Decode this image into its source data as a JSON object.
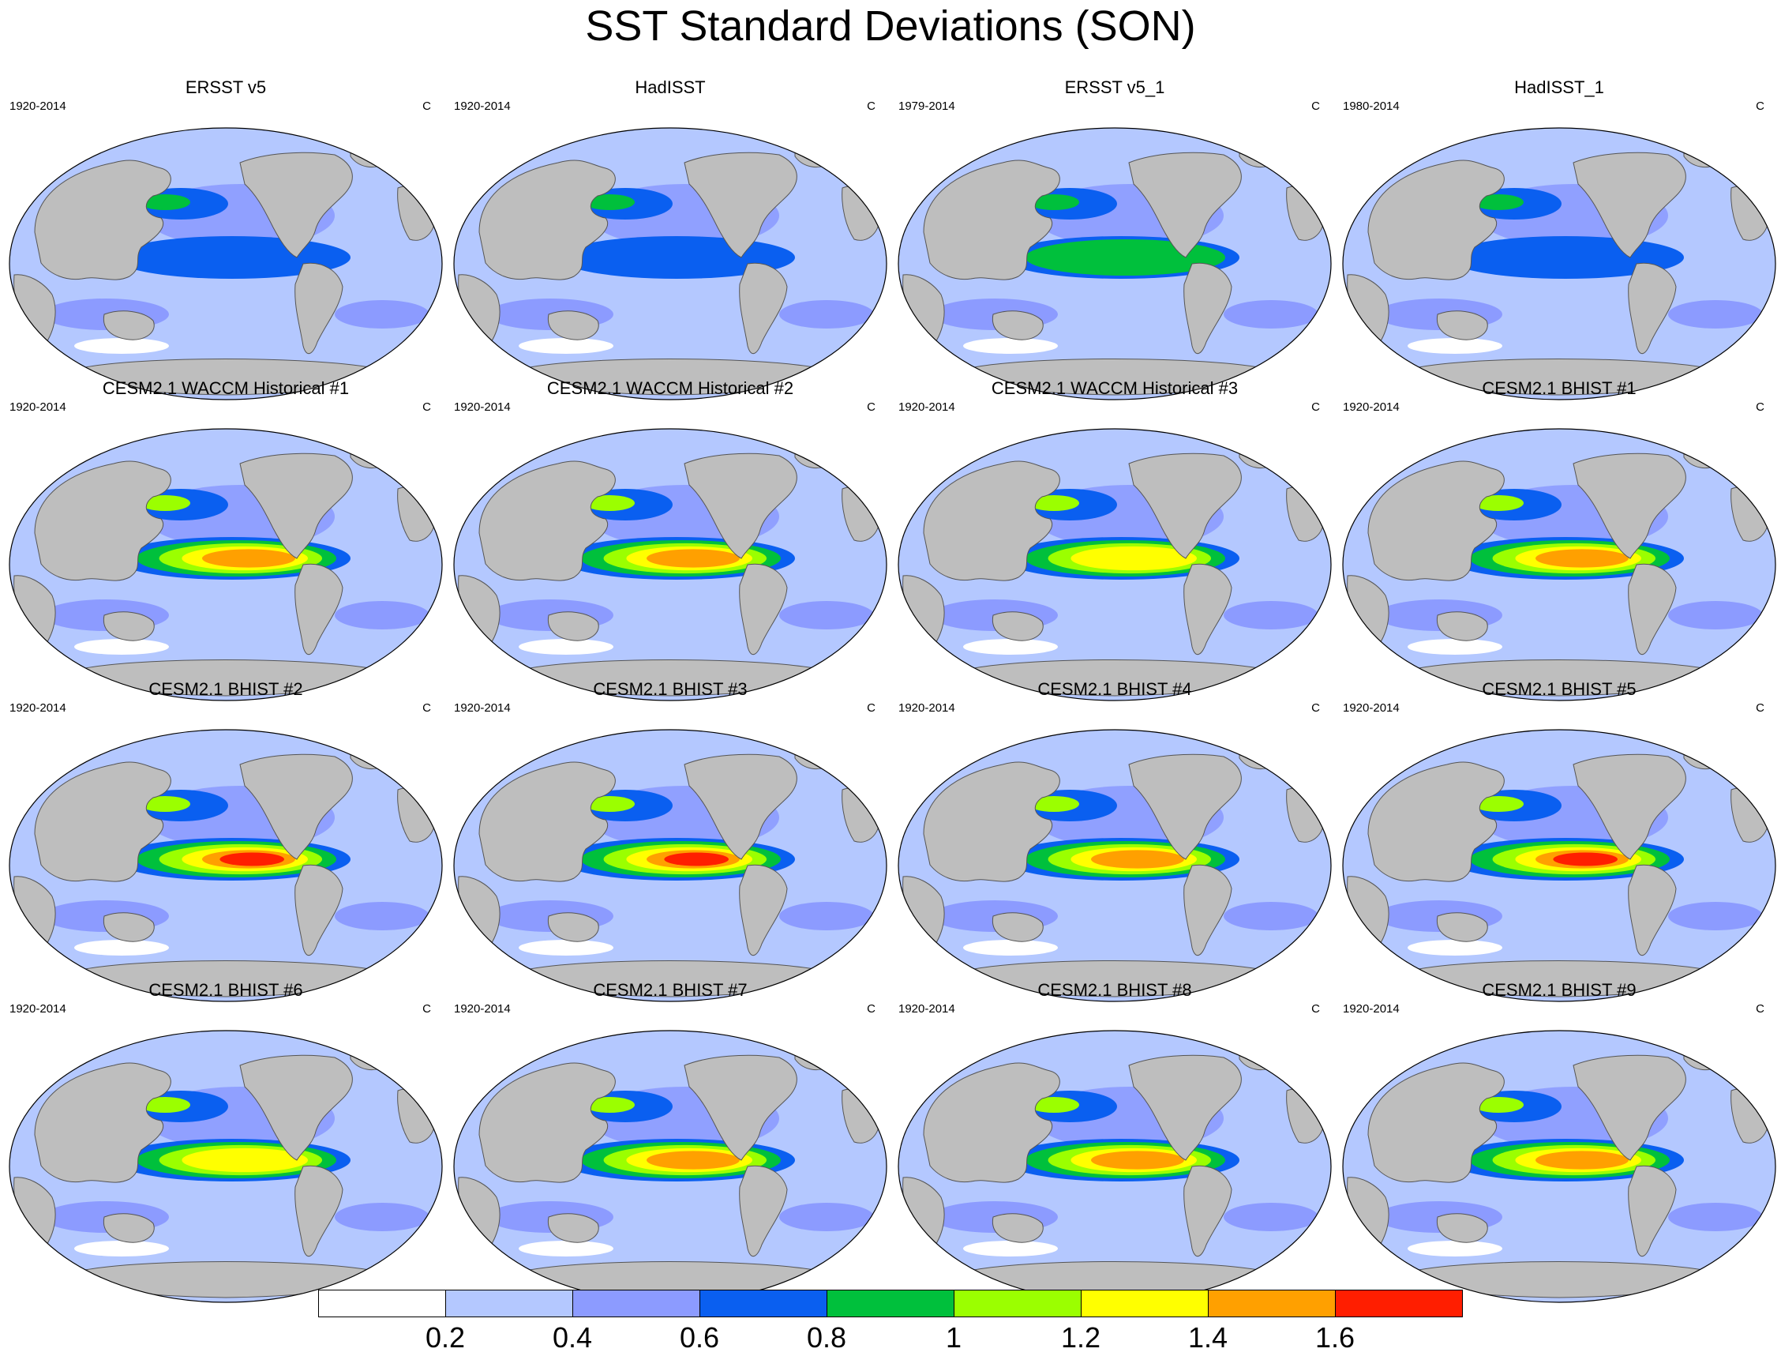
{
  "title": "SST Standard Deviations (SON)",
  "panels": [
    {
      "title": "ERSST v5",
      "period": "1920-2014",
      "unit": "C",
      "enso": 0.8
    },
    {
      "title": "HadISST",
      "period": "1920-2014",
      "unit": "C",
      "enso": 0.75
    },
    {
      "title": "ERSST v5_1",
      "period": "1979-2014",
      "unit": "C",
      "enso": 0.9
    },
    {
      "title": "HadISST_1",
      "period": "1980-2014",
      "unit": "C",
      "enso": 0.85
    },
    {
      "title": "CESM2.1 WACCM Historical #1",
      "period": "1920-2014",
      "unit": "C",
      "enso": 1.5
    },
    {
      "title": "CESM2.1 WACCM Historical #2",
      "period": "1920-2014",
      "unit": "C",
      "enso": 1.55
    },
    {
      "title": "CESM2.1 WACCM Historical #3",
      "period": "1920-2014",
      "unit": "C",
      "enso": 1.45
    },
    {
      "title": "CESM2.1 BHIST #1",
      "period": "1920-2014",
      "unit": "C",
      "enso": 1.55
    },
    {
      "title": "CESM2.1 BHIST #2",
      "period": "1920-2014",
      "unit": "C",
      "enso": 1.75
    },
    {
      "title": "CESM2.1 BHIST #3",
      "period": "1920-2014",
      "unit": "C",
      "enso": 1.7
    },
    {
      "title": "CESM2.1 BHIST #4",
      "period": "1920-2014",
      "unit": "C",
      "enso": 1.5
    },
    {
      "title": "CESM2.1 BHIST #5",
      "period": "1920-2014",
      "unit": "C",
      "enso": 1.7
    },
    {
      "title": "CESM2.1 BHIST #6",
      "period": "1920-2014",
      "unit": "C",
      "enso": 1.35
    },
    {
      "title": "CESM2.1 BHIST #7",
      "period": "1920-2014",
      "unit": "C",
      "enso": 1.5
    },
    {
      "title": "CESM2.1 BHIST #8",
      "period": "1920-2014",
      "unit": "C",
      "enso": 1.6
    },
    {
      "title": "CESM2.1 BHIST #9",
      "period": "1920-2014",
      "unit": "C",
      "enso": 1.5
    }
  ],
  "colorbar": {
    "colors": [
      "#ffffff",
      "#b4c8ff",
      "#8c9bff",
      "#0a5ff0",
      "#00c03c",
      "#9bff00",
      "#ffff00",
      "#ffa000",
      "#ff1e00"
    ],
    "labels": [
      "0.2",
      "0.4",
      "0.6",
      "0.8",
      "1",
      "1.2",
      "1.4",
      "1.6"
    ]
  },
  "land_color": "#bebebe",
  "ocean_color": "#b4c8ff"
}
